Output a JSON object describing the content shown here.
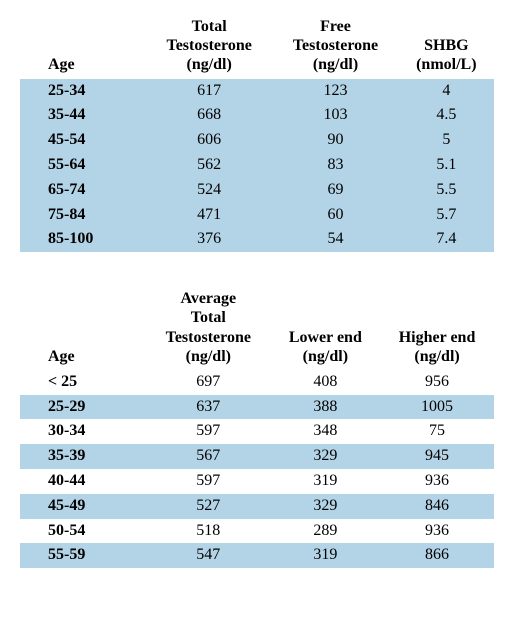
{
  "colors": {
    "band_color": "#b3d3e6",
    "background_color": "#ffffff",
    "text_color": "#000000"
  },
  "typography": {
    "font_family": "Times New Roman",
    "header_fontsize": 16,
    "cell_fontsize": 16
  },
  "table1": {
    "headers": {
      "age": "Age",
      "total": "Total\nTestosterone\n(ng/dl)",
      "free": "Free\nTestosterone\n(ng/dl)",
      "shbg": "SHBG\n(nmol/L)"
    },
    "rows": [
      {
        "age": "25-34",
        "total": "617",
        "free": "123",
        "shbg": "4"
      },
      {
        "age": "35-44",
        "total": "668",
        "free": "103",
        "shbg": "4.5"
      },
      {
        "age": "45-54",
        "total": "606",
        "free": "90",
        "shbg": "5"
      },
      {
        "age": "55-64",
        "total": "562",
        "free": "83",
        "shbg": "5.1"
      },
      {
        "age": "65-74",
        "total": "524",
        "free": "69",
        "shbg": "5.5"
      },
      {
        "age": "75-84",
        "total": "471",
        "free": "60",
        "shbg": "5.7"
      },
      {
        "age": "85-100",
        "total": "376",
        "free": "54",
        "shbg": "7.4"
      }
    ]
  },
  "table2": {
    "headers": {
      "age": "Age",
      "avg": "Average\nTotal\nTestosterone\n(ng/dl)",
      "lower": "Lower end\n(ng/dl)",
      "higher": "Higher end\n(ng/dl)"
    },
    "rows": [
      {
        "age": "< 25",
        "avg": "697",
        "lower": "408",
        "higher": "956",
        "band": false
      },
      {
        "age": "25-29",
        "avg": "637",
        "lower": "388",
        "higher": "1005",
        "band": true
      },
      {
        "age": "30-34",
        "avg": "597",
        "lower": "348",
        "higher": "75",
        "band": false
      },
      {
        "age": "35-39",
        "avg": "567",
        "lower": "329",
        "higher": "945",
        "band": true
      },
      {
        "age": "40-44",
        "avg": "597",
        "lower": "319",
        "higher": "936",
        "band": false
      },
      {
        "age": "45-49",
        "avg": "527",
        "lower": "329",
        "higher": "846",
        "band": true
      },
      {
        "age": "50-54",
        "avg": "518",
        "lower": "289",
        "higher": "936",
        "band": false
      },
      {
        "age": "55-59",
        "avg": "547",
        "lower": "319",
        "higher": "866",
        "band": true
      }
    ]
  }
}
